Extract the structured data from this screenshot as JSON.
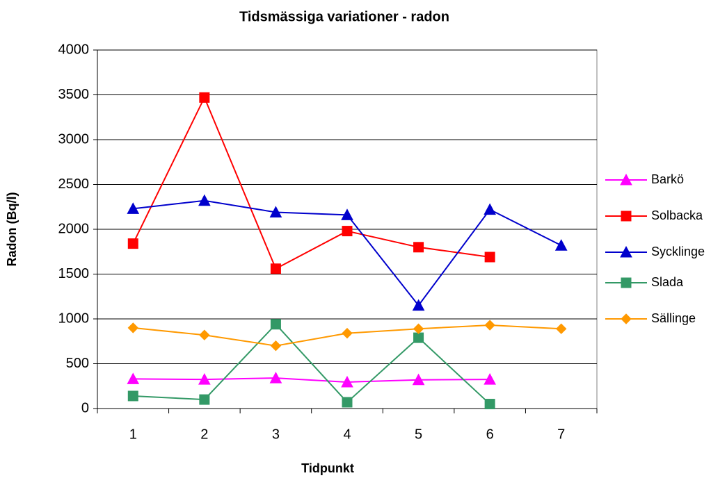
{
  "chart_data": {
    "type": "line",
    "title": "Tidsmässiga variationer  -  radon",
    "x_label": "Tidpunkt",
    "y_label": "Radon (Bq/l)",
    "categories": [
      "1",
      "2",
      "3",
      "4",
      "5",
      "6",
      "7"
    ],
    "series": [
      {
        "name": "Barkö",
        "color": "#ff00ff",
        "marker": "triangle",
        "values": [
          330,
          325,
          340,
          295,
          320,
          325,
          null
        ]
      },
      {
        "name": "Solbacka",
        "color": "#ff0000",
        "marker": "square",
        "values": [
          1840,
          3470,
          1560,
          1980,
          1800,
          1690,
          null
        ]
      },
      {
        "name": "Sycklinge",
        "color": "#0000cc",
        "marker": "triangle",
        "values": [
          2230,
          2320,
          2190,
          2160,
          1150,
          2220,
          1820
        ]
      },
      {
        "name": "Slada",
        "color": "#339966",
        "marker": "square",
        "values": [
          140,
          100,
          940,
          70,
          790,
          50,
          null
        ]
      },
      {
        "name": "Sällinge",
        "color": "#ff9900",
        "marker": "diamond",
        "values": [
          900,
          820,
          700,
          840,
          890,
          930,
          890
        ]
      }
    ],
    "ylim": [
      0,
      4000
    ],
    "yticks": [
      0,
      500,
      1000,
      1500,
      2000,
      2500,
      3000,
      3500,
      4000
    ],
    "grid": true,
    "legend": "right"
  }
}
